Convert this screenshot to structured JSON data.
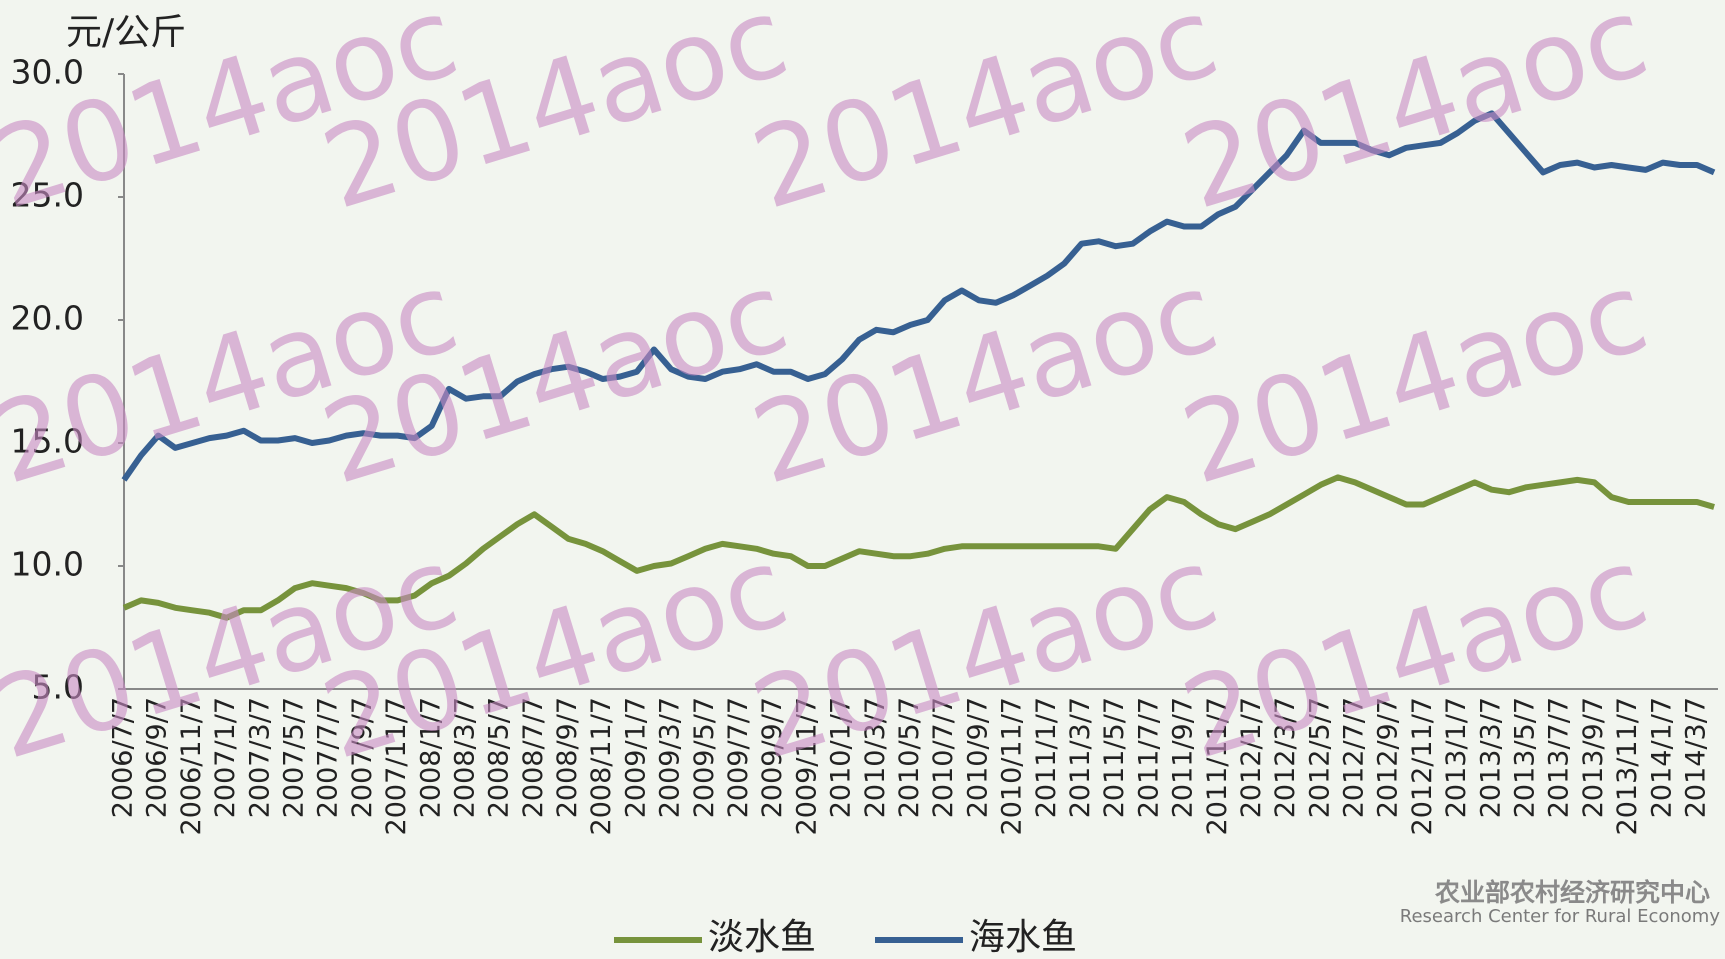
{
  "chart_data": {
    "type": "line",
    "y_axis_label": "元/公斤",
    "watermark": "2014aoc",
    "logo_texts": [
      "农业部农村经济研究中心",
      "Research Center for Rural Economy"
    ],
    "categories": [
      "2006/7/7",
      null,
      "2006/9/7",
      null,
      "2006/11/7",
      null,
      "2007/1/7",
      null,
      "2007/3/7",
      null,
      "2007/5/7",
      null,
      "2007/7/7",
      null,
      "2007/9/7",
      null,
      "2007/11/7",
      null,
      "2008/1/7",
      null,
      "2008/3/7",
      null,
      "2008/5/7",
      null,
      "2008/7/7",
      null,
      "2008/9/7",
      null,
      "2008/11/7",
      null,
      "2009/1/7",
      null,
      "2009/3/7",
      null,
      "2009/5/7",
      null,
      "2009/7/7",
      null,
      "2009/9/7",
      null,
      "2009/11/7",
      null,
      "2010/1/7",
      null,
      "2010/3/7",
      null,
      "2010/5/7",
      null,
      "2010/7/7",
      null,
      "2010/9/7",
      null,
      "2010/11/7",
      null,
      "2011/1/7",
      null,
      "2011/3/7",
      null,
      "2011/5/7",
      null,
      "2011/7/7",
      null,
      "2011/9/7",
      null,
      "2011/11/7",
      null,
      "2012/1/7",
      null,
      "2012/3/7",
      null,
      "2012/5/7",
      null,
      "2012/7/7",
      null,
      "2012/9/7",
      null,
      "2012/11/7",
      null,
      "2013/1/7",
      null,
      "2013/3/7",
      null,
      "2013/5/7",
      null,
      "2013/7/7",
      null,
      "2013/9/7",
      null,
      "2013/11/7",
      null,
      "2014/1/7",
      null,
      "2014/3/7",
      null
    ],
    "series": [
      {
        "name": "淡水鱼",
        "color": "#77933c",
        "values": [
          8.3,
          8.6,
          8.5,
          8.3,
          8.2,
          8.1,
          7.9,
          8.2,
          8.2,
          8.6,
          9.1,
          9.3,
          9.2,
          9.1,
          8.9,
          8.6,
          8.6,
          8.8,
          9.3,
          9.6,
          10.1,
          10.7,
          11.2,
          11.7,
          12.1,
          11.6,
          11.1,
          10.9,
          10.6,
          10.2,
          9.8,
          10.0,
          10.1,
          10.4,
          10.7,
          10.9,
          10.8,
          10.7,
          10.5,
          10.4,
          10.0,
          10.0,
          10.3,
          10.6,
          10.5,
          10.4,
          10.4,
          10.5,
          10.7,
          10.8,
          10.8,
          10.8,
          10.8,
          10.8,
          10.8,
          10.8,
          10.8,
          10.8,
          10.7,
          11.5,
          12.3,
          12.8,
          12.6,
          12.1,
          11.7,
          11.5,
          11.8,
          12.1,
          12.5,
          12.9,
          13.3,
          13.6,
          13.4,
          13.1,
          12.8,
          12.5,
          12.5,
          12.8,
          13.1,
          13.4,
          13.1,
          13.0,
          13.2,
          13.3,
          13.4,
          13.5,
          13.4,
          12.8,
          12.6,
          12.6,
          12.6,
          12.6,
          12.6,
          12.4
        ]
      },
      {
        "name": "海水鱼",
        "color": "#376092",
        "values": [
          13.5,
          14.5,
          15.3,
          14.8,
          15.0,
          15.2,
          15.3,
          15.5,
          15.1,
          15.1,
          15.2,
          15.0,
          15.1,
          15.3,
          15.4,
          15.3,
          15.3,
          15.2,
          15.7,
          17.2,
          16.8,
          16.9,
          16.9,
          17.5,
          17.8,
          18.0,
          18.1,
          17.9,
          17.6,
          17.7,
          17.9,
          18.8,
          18.0,
          17.7,
          17.6,
          17.9,
          18.0,
          18.2,
          17.9,
          17.9,
          17.6,
          17.8,
          18.4,
          19.2,
          19.6,
          19.5,
          19.8,
          20.0,
          20.8,
          21.2,
          20.8,
          20.7,
          21.0,
          21.4,
          21.8,
          22.3,
          23.1,
          23.2,
          23.0,
          23.1,
          23.6,
          24.0,
          23.8,
          23.8,
          24.3,
          24.6,
          25.3,
          26.0,
          26.7,
          27.7,
          27.2,
          27.2,
          27.2,
          26.9,
          26.7,
          27.0,
          27.1,
          27.2,
          27.6,
          28.1,
          28.4,
          27.6,
          26.8,
          26.0,
          26.3,
          26.4,
          26.2,
          26.3,
          26.2,
          26.1,
          26.4,
          26.3,
          26.3,
          26.0
        ]
      }
    ],
    "ylim": [
      5,
      30
    ],
    "yticks": [
      {
        "value": 5,
        "label": "5.0"
      },
      {
        "value": 10,
        "label": "10.0"
      },
      {
        "value": 15,
        "label": "15.0"
      },
      {
        "value": 20,
        "label": "20.0"
      },
      {
        "value": 25,
        "label": "25.0"
      },
      {
        "value": 30,
        "label": "30.0"
      }
    ],
    "grid": false
  }
}
